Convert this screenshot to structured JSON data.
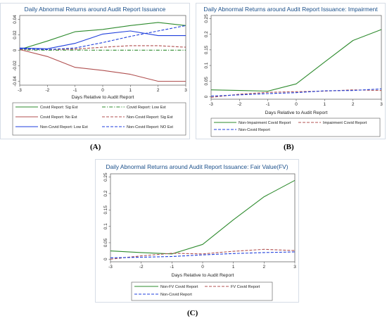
{
  "captions": [
    "(A)",
    "(B)",
    "(C)"
  ],
  "chart_data": [
    {
      "type": "line",
      "title": "Daily Abnormal Returns around Audit Report Issuance",
      "xlabel": "Days Relative to Audit Report",
      "ylabel": "",
      "x": [
        -3,
        -2,
        -1,
        0,
        1,
        2,
        3
      ],
      "xlim": [
        -3,
        3
      ],
      "ylim": [
        -0.045,
        0.045
      ],
      "xticks": [
        "-3",
        "-2",
        "-1",
        "0",
        "1",
        "2",
        "3"
      ],
      "yticks": [
        "-0.04",
        "-0.02",
        "0",
        "0.02",
        "0.04"
      ],
      "ytick_values": [
        -0.04,
        -0.02,
        0,
        0.02,
        0.04
      ],
      "grid": false,
      "legend_position": "bottom",
      "series": [
        {
          "name": "Covid Report: Sig Est",
          "color": "#2e8b2e",
          "dash": "solid",
          "values": [
            0.001,
            0.012,
            0.024,
            0.027,
            0.032,
            0.036,
            0.032
          ]
        },
        {
          "name": "Covid Report: Low Est",
          "color": "#2e8b2e",
          "dash": "dashdot",
          "values": [
            0.0005,
            0.0002,
            0.0003,
            0.0002,
            0.0002,
            0.0002,
            0.0002
          ]
        },
        {
          "name": "Covid Report: No Est",
          "color": "#b05050",
          "dash": "solid",
          "values": [
            0.001,
            -0.008,
            -0.022,
            -0.026,
            -0.031,
            -0.04,
            -0.04
          ]
        },
        {
          "name": "Non-Covid Report: Sig Est",
          "color": "#b05050",
          "dash": "dash",
          "values": [
            0.0015,
            0.001,
            0.0015,
            0.004,
            0.006,
            0.006,
            0.004
          ]
        },
        {
          "name": "Non-Covid Report: Low Est",
          "color": "#1f3fdc",
          "dash": "solid",
          "values": [
            0.003,
            0.002,
            0.009,
            0.021,
            0.025,
            0.019,
            0.019
          ]
        },
        {
          "name": "Non-Covid Report: NO Est",
          "color": "#1f3fdc",
          "dash": "dash",
          "values": [
            0.002,
            0.001,
            0.003,
            0.01,
            0.018,
            0.025,
            0.032
          ]
        }
      ]
    },
    {
      "type": "line",
      "title": "Daily Abnormal Returns around Audit Report Issuance: Impairment",
      "xlabel": "Days Relative to Audit Report",
      "ylabel": "",
      "x": [
        -3,
        -2,
        -1,
        0,
        1,
        2,
        3
      ],
      "xlim": [
        -3,
        3
      ],
      "ylim": [
        -0.008,
        0.26
      ],
      "xticks": [
        "-3",
        "-2",
        "-1",
        "0",
        "1",
        "2",
        "3"
      ],
      "yticks": [
        "0",
        "0.05",
        "0.1",
        "0.15",
        "0.2",
        "0.25"
      ],
      "ytick_values": [
        0,
        0.05,
        0.1,
        0.15,
        0.2,
        0.25
      ],
      "grid": false,
      "legend_position": "bottom",
      "series": [
        {
          "name": "Non-Impairment Covid Report",
          "color": "#2e8b2e",
          "dash": "solid",
          "values": [
            0.022,
            0.02,
            0.018,
            0.041,
            0.111,
            0.18,
            0.215
          ]
        },
        {
          "name": "Impairment Covid Report",
          "color": "#b05050",
          "dash": "dash",
          "values": [
            -0.002,
            0.008,
            0.014,
            0.016,
            0.018,
            0.022,
            0.02
          ]
        },
        {
          "name": "Non-Covid Report",
          "color": "#1f3fdc",
          "dash": "dash",
          "values": [
            0.002,
            0.006,
            0.01,
            0.013,
            0.019,
            0.02,
            0.025
          ]
        }
      ]
    },
    {
      "type": "line",
      "title": "Daily Abnormal Returns around Audit Report Issuance: Fair Value(FV)",
      "xlabel": "Days Relative to Audit Report",
      "ylabel": "",
      "x": [
        -3,
        -2,
        -1,
        0,
        1,
        2,
        3
      ],
      "xlim": [
        -3,
        3
      ],
      "ylim": [
        -0.008,
        0.26
      ],
      "xticks": [
        "-3",
        "-2",
        "-1",
        "0",
        "1",
        "2",
        "3"
      ],
      "yticks": [
        "0",
        "0.05",
        "0.1",
        "0.15",
        "0.2",
        "0.25"
      ],
      "ytick_values": [
        0,
        0.05,
        0.1,
        0.15,
        0.2,
        0.25
      ],
      "grid": false,
      "legend_position": "bottom",
      "series": [
        {
          "name": "Non-FV Covid Report",
          "color": "#2e8b2e",
          "dash": "solid",
          "values": [
            0.025,
            0.02,
            0.016,
            0.045,
            0.12,
            0.19,
            0.24
          ]
        },
        {
          "name": "FV Covid Report",
          "color": "#b05050",
          "dash": "dash",
          "values": [
            0.0,
            0.01,
            0.018,
            0.016,
            0.024,
            0.03,
            0.026
          ]
        },
        {
          "name": "Non-Covid Report",
          "color": "#1f3fdc",
          "dash": "dash",
          "values": [
            0.004,
            0.006,
            0.008,
            0.013,
            0.017,
            0.02,
            0.022
          ]
        }
      ]
    }
  ]
}
